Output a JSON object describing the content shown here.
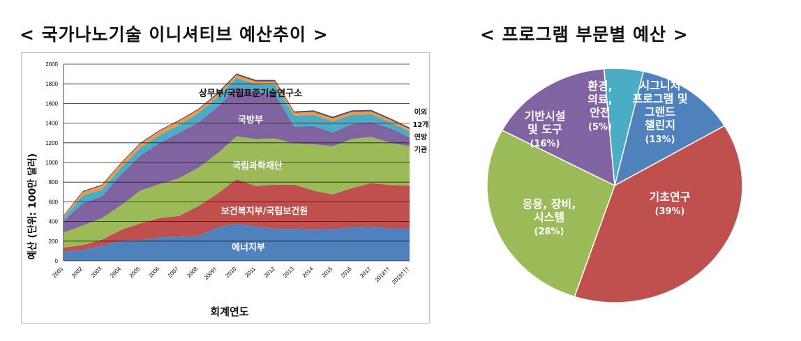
{
  "title_left": "< 국가나노기술 이니셔티브 예산추이 >",
  "title_right": "< 프로그램 부문별 예산 >",
  "colors": {
    "energy": "#4f81bd",
    "health": "#c0504d",
    "nsf": "#9bbb59",
    "dod": "#8064a2",
    "commerce": "#4bacc6",
    "other_orange": "#f79646",
    "other_dark": "#44546a",
    "pie_research": "#c0504d",
    "pie_applications": "#9bbb59",
    "pie_infrastructure": "#8064a2",
    "pie_environment": "#4bacc6",
    "pie_signature": "#4f81bd"
  },
  "chart_data": [
    {
      "type": "area",
      "stacked": true,
      "ylabel": "예산 (단위: 100만 달러)",
      "xlabel": "회계연도",
      "ylim": [
        0,
        2000
      ],
      "yticks": [
        0,
        200,
        400,
        600,
        800,
        1000,
        1200,
        1400,
        1600,
        1800,
        2000
      ],
      "grid": true,
      "categories": [
        "2001",
        "2002",
        "2003",
        "2004",
        "2005",
        "2006",
        "2007",
        "2008",
        "2009†",
        "2010",
        "2011",
        "2012",
        "2013",
        "2014",
        "2015",
        "2016",
        "2017",
        "2018††",
        "2019†††"
      ],
      "series": [
        {
          "name": "에너지부",
          "color_key": "energy",
          "values": [
            95,
            110,
            150,
            205,
            210,
            240,
            245,
            250,
            340,
            375,
            350,
            325,
            325,
            320,
            325,
            340,
            345,
            330,
            330
          ]
        },
        {
          "name": "보건복지부/국립보건원",
          "color_key": "health",
          "values": [
            40,
            50,
            65,
            110,
            170,
            195,
            210,
            305,
            340,
            455,
            410,
            450,
            450,
            395,
            350,
            400,
            445,
            440,
            435
          ]
        },
        {
          "name": "국립과학재단",
          "color_key": "nsf",
          "values": [
            150,
            200,
            220,
            250,
            335,
            345,
            385,
            390,
            410,
            435,
            480,
            470,
            420,
            470,
            490,
            500,
            470,
            430,
            400
          ]
        },
        {
          "name": "국방부",
          "color_key": "dod",
          "values": [
            115,
            225,
            220,
            315,
            355,
            420,
            460,
            460,
            470,
            500,
            480,
            450,
            170,
            185,
            140,
            150,
            150,
            150,
            90
          ]
        },
        {
          "name": "상무부/국립표준기술연구소",
          "color_key": "commerce",
          "values": [
            30,
            80,
            70,
            70,
            80,
            80,
            80,
            95,
            100,
            95,
            75,
            95,
            110,
            115,
            115,
            95,
            80,
            60,
            60
          ]
        },
        {
          "name": "이외 12개 연방 기관",
          "color_key": "other_orange",
          "values": [
            20,
            35,
            40,
            40,
            40,
            40,
            40,
            35,
            30,
            30,
            30,
            35,
            30,
            30,
            30,
            30,
            30,
            25,
            25
          ]
        },
        {
          "name": "",
          "color_key": "other_dark",
          "values": [
            10,
            10,
            10,
            10,
            10,
            10,
            10,
            10,
            15,
            15,
            15,
            15,
            15,
            15,
            15,
            15,
            15,
            15,
            15
          ]
        }
      ],
      "in_chart_labels": {
        "energy": "에너지부",
        "health": "보건복지부/국립보건원",
        "nsf": "국립과학재단",
        "dod": "국방부",
        "commerce": "상무부/국립표준기술연구소",
        "others": [
          "이외",
          "12개",
          "연방",
          "기관"
        ]
      }
    },
    {
      "type": "pie",
      "slices": [
        {
          "key": "research",
          "label_lines": [
            "기초연구"
          ],
          "percent_label": "(39%)",
          "value": 39,
          "color_key": "pie_research"
        },
        {
          "key": "applications",
          "label_lines": [
            "응용, 장비,",
            "시스템"
          ],
          "percent_label": "(28%)",
          "value": 28,
          "color_key": "pie_applications"
        },
        {
          "key": "infrastructure",
          "label_lines": [
            "기반시설",
            "및 도구"
          ],
          "percent_label": "(16%)",
          "value": 16,
          "color_key": "pie_infrastructure"
        },
        {
          "key": "environment",
          "label_lines": [
            "환경,",
            "의료,",
            "안전"
          ],
          "percent_label": "(5%)",
          "value": 5,
          "color_key": "pie_environment"
        },
        {
          "key": "signature",
          "label_lines": [
            "시그니처",
            "프로그램 및",
            "그랜드",
            "챌린지"
          ],
          "percent_label": "(13%)",
          "value": 13,
          "color_key": "pie_signature"
        }
      ]
    }
  ]
}
